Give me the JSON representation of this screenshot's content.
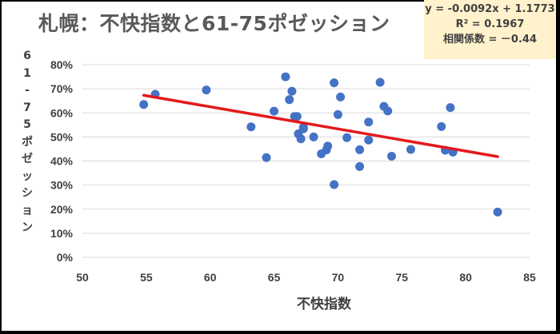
{
  "chart_data": {
    "type": "scatter",
    "title": "札幌：不快指数と61-75ポゼッション",
    "xlabel": "不快指数",
    "ylabel": "61-75ポゼッション",
    "xlim": [
      50,
      85
    ],
    "ylim": [
      0,
      0.8
    ],
    "xticks": [
      "50",
      "55",
      "60",
      "65",
      "70",
      "75",
      "80",
      "85"
    ],
    "yticks": [
      "0%",
      "10%",
      "20%",
      "30%",
      "40%",
      "50%",
      "60%",
      "70%",
      "80%"
    ],
    "grid": true,
    "points": [
      [
        54.8,
        0.635
      ],
      [
        55.7,
        0.677
      ],
      [
        59.7,
        0.695
      ],
      [
        63.2,
        0.542
      ],
      [
        64.4,
        0.414
      ],
      [
        65.0,
        0.607
      ],
      [
        65.9,
        0.75
      ],
      [
        66.2,
        0.655
      ],
      [
        66.4,
        0.69
      ],
      [
        66.6,
        0.585
      ],
      [
        66.8,
        0.585
      ],
      [
        66.9,
        0.513
      ],
      [
        67.1,
        0.492
      ],
      [
        67.3,
        0.54
      ],
      [
        67.3,
        0.534
      ],
      [
        68.1,
        0.5
      ],
      [
        68.7,
        0.43
      ],
      [
        69.1,
        0.446
      ],
      [
        69.2,
        0.462
      ],
      [
        69.7,
        0.725
      ],
      [
        69.7,
        0.302
      ],
      [
        70.0,
        0.593
      ],
      [
        70.2,
        0.666
      ],
      [
        70.7,
        0.497
      ],
      [
        71.7,
        0.377
      ],
      [
        71.7,
        0.447
      ],
      [
        72.4,
        0.562
      ],
      [
        72.4,
        0.487
      ],
      [
        73.3,
        0.727
      ],
      [
        73.6,
        0.627
      ],
      [
        73.9,
        0.608
      ],
      [
        74.2,
        0.42
      ],
      [
        75.7,
        0.448
      ],
      [
        78.1,
        0.543
      ],
      [
        78.4,
        0.445
      ],
      [
        78.8,
        0.622
      ],
      [
        79.0,
        0.437
      ],
      [
        82.5,
        0.188
      ]
    ],
    "trendline": {
      "slope": -0.0092,
      "intercept": 1.1773,
      "color": "#e31a1c"
    },
    "point_color": "#4472c4",
    "annotations": [
      "y = -0.0092x + 1.1773",
      "R² = 0.1967",
      "相関係数 = －0.44"
    ]
  }
}
